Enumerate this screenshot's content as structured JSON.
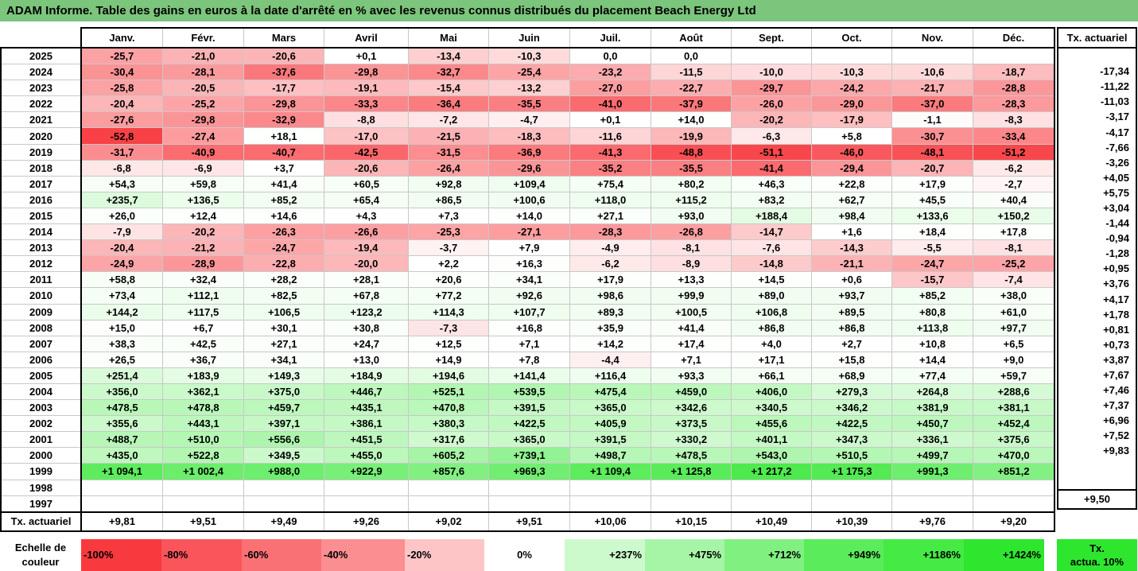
{
  "title": "ADAM Informe. Table des gains en euros à la date d'arrêté en % avec les revenus connus distribués du placement Beach Energy Ltd",
  "months": [
    "Janv.",
    "Févr.",
    "Mars",
    "Avril",
    "Mai",
    "Juin",
    "Juil.",
    "Août",
    "Sept.",
    "Oct.",
    "Nov.",
    "Déc."
  ],
  "rate_header": "Tx. actuariel",
  "footer_label": "Tx. actuariel",
  "footer_values": [
    "+9,81",
    "+9,51",
    "+9,49",
    "+9,26",
    "+9,02",
    "+9,51",
    "+10,06",
    "+10,15",
    "+10,49",
    "+10,39",
    "+9,76",
    "+9,20"
  ],
  "footer_rate": "+9,50",
  "rows": [
    {
      "year": "2025",
      "values": [
        "-25,7",
        "-21,0",
        "-20,6",
        "+0,1",
        "-13,4",
        "-10,3",
        "0,0",
        "0,0",
        "",
        "",
        "",
        ""
      ],
      "rate": ""
    },
    {
      "year": "2024",
      "values": [
        "-30,4",
        "-28,1",
        "-37,6",
        "-29,8",
        "-32,7",
        "-25,4",
        "-23,2",
        "-11,5",
        "-10,0",
        "-10,3",
        "-10,6",
        "-18,7"
      ],
      "rate": "-17,34"
    },
    {
      "year": "2023",
      "values": [
        "-25,8",
        "-20,5",
        "-17,7",
        "-19,1",
        "-15,4",
        "-13,2",
        "-27,0",
        "-22,7",
        "-29,7",
        "-24,2",
        "-21,7",
        "-28,8"
      ],
      "rate": "-11,22"
    },
    {
      "year": "2022",
      "values": [
        "-20,4",
        "-25,2",
        "-29,8",
        "-33,3",
        "-36,4",
        "-35,5",
        "-41,0",
        "-37,9",
        "-26,0",
        "-29,0",
        "-37,0",
        "-28,3"
      ],
      "rate": "-11,03"
    },
    {
      "year": "2021",
      "values": [
        "-27,6",
        "-29,8",
        "-32,9",
        "-8,8",
        "-7,2",
        "-4,7",
        "+0,1",
        "+14,0",
        "-20,2",
        "-17,9",
        "-1,1",
        "-8,3"
      ],
      "rate": "-3,17"
    },
    {
      "year": "2020",
      "values": [
        "-52,8",
        "-27,4",
        "+18,1",
        "-17,0",
        "-21,5",
        "-18,3",
        "-11,6",
        "-19,9",
        "-6,3",
        "+5,8",
        "-30,7",
        "-33,4"
      ],
      "rate": "-4,17"
    },
    {
      "year": "2019",
      "values": [
        "-31,7",
        "-40,9",
        "-40,7",
        "-42,5",
        "-31,5",
        "-36,9",
        "-41,3",
        "-48,8",
        "-51,1",
        "-46,0",
        "-48,1",
        "-51,2"
      ],
      "rate": "-7,66"
    },
    {
      "year": "2018",
      "values": [
        "-6,8",
        "-6,9",
        "+3,7",
        "-20,6",
        "-26,4",
        "-29,6",
        "-35,2",
        "-35,5",
        "-41,4",
        "-29,4",
        "-20,7",
        "-6,2"
      ],
      "rate": "-3,26"
    },
    {
      "year": "2017",
      "values": [
        "+54,3",
        "+59,8",
        "+41,4",
        "+60,5",
        "+92,8",
        "+109,4",
        "+75,4",
        "+80,2",
        "+46,3",
        "+22,8",
        "+17,9",
        "-2,7"
      ],
      "rate": "+4,05"
    },
    {
      "year": "2016",
      "values": [
        "+235,7",
        "+136,5",
        "+85,2",
        "+65,4",
        "+86,5",
        "+100,6",
        "+118,0",
        "+115,2",
        "+83,2",
        "+62,7",
        "+45,5",
        "+40,4"
      ],
      "rate": "+5,75"
    },
    {
      "year": "2015",
      "values": [
        "+26,0",
        "+12,4",
        "+14,6",
        "+4,3",
        "+7,3",
        "+14,0",
        "+27,1",
        "+93,0",
        "+188,4",
        "+98,4",
        "+133,6",
        "+150,2"
      ],
      "rate": "+3,04"
    },
    {
      "year": "2014",
      "values": [
        "-7,9",
        "-20,2",
        "-26,3",
        "-26,6",
        "-25,3",
        "-27,1",
        "-28,3",
        "-26,8",
        "-14,7",
        "+1,6",
        "+18,4",
        "+17,8"
      ],
      "rate": "-1,44"
    },
    {
      "year": "2013",
      "values": [
        "-20,4",
        "-21,2",
        "-24,7",
        "-19,4",
        "-3,7",
        "+7,9",
        "-4,9",
        "-8,1",
        "-7,6",
        "-14,3",
        "-5,5",
        "-8,1"
      ],
      "rate": "-0,94"
    },
    {
      "year": "2012",
      "values": [
        "-24,9",
        "-28,9",
        "-22,8",
        "-20,0",
        "+2,2",
        "+16,3",
        "-6,2",
        "-8,9",
        "-14,8",
        "-21,1",
        "-24,7",
        "-25,2"
      ],
      "rate": "-1,28"
    },
    {
      "year": "2011",
      "values": [
        "+58,8",
        "+32,4",
        "+28,2",
        "+28,1",
        "+20,6",
        "+34,1",
        "+17,9",
        "+13,3",
        "+14,5",
        "+0,6",
        "-15,7",
        "-7,4"
      ],
      "rate": "+0,95"
    },
    {
      "year": "2010",
      "values": [
        "+73,4",
        "+112,1",
        "+82,5",
        "+67,8",
        "+77,2",
        "+92,6",
        "+98,6",
        "+99,9",
        "+89,0",
        "+93,7",
        "+85,2",
        "+38,0"
      ],
      "rate": "+3,76"
    },
    {
      "year": "2009",
      "values": [
        "+144,2",
        "+117,5",
        "+106,5",
        "+123,2",
        "+114,3",
        "+107,7",
        "+89,3",
        "+100,5",
        "+106,8",
        "+89,5",
        "+80,8",
        "+61,0"
      ],
      "rate": "+4,17"
    },
    {
      "year": "2008",
      "values": [
        "+15,0",
        "+6,7",
        "+30,1",
        "+30,8",
        "-7,3",
        "+16,8",
        "+35,9",
        "+41,4",
        "+86,8",
        "+86,8",
        "+113,8",
        "+97,7"
      ],
      "rate": "+1,78"
    },
    {
      "year": "2007",
      "values": [
        "+38,3",
        "+42,5",
        "+27,1",
        "+24,7",
        "+12,5",
        "+7,1",
        "+14,2",
        "+17,4",
        "+4,0",
        "+2,7",
        "+10,8",
        "+6,5"
      ],
      "rate": "+0,81"
    },
    {
      "year": "2006",
      "values": [
        "+26,5",
        "+36,7",
        "+34,1",
        "+13,0",
        "+14,9",
        "+7,8",
        "-4,4",
        "+7,1",
        "+17,1",
        "+15,8",
        "+14,4",
        "+9,0"
      ],
      "rate": "+0,73"
    },
    {
      "year": "2005",
      "values": [
        "+251,4",
        "+183,9",
        "+149,3",
        "+184,9",
        "+194,6",
        "+141,4",
        "+116,4",
        "+93,3",
        "+66,1",
        "+68,9",
        "+77,4",
        "+59,7"
      ],
      "rate": "+3,87"
    },
    {
      "year": "2004",
      "values": [
        "+356,0",
        "+362,1",
        "+375,0",
        "+446,7",
        "+525,1",
        "+539,5",
        "+475,4",
        "+459,0",
        "+406,0",
        "+279,3",
        "+264,8",
        "+288,6"
      ],
      "rate": "+7,67"
    },
    {
      "year": "2003",
      "values": [
        "+478,5",
        "+478,8",
        "+459,7",
        "+435,1",
        "+470,8",
        "+391,5",
        "+365,0",
        "+342,6",
        "+340,5",
        "+346,2",
        "+381,9",
        "+381,1"
      ],
      "rate": "+7,46"
    },
    {
      "year": "2002",
      "values": [
        "+355,6",
        "+443,1",
        "+397,1",
        "+386,1",
        "+380,3",
        "+422,5",
        "+405,9",
        "+373,5",
        "+455,6",
        "+422,5",
        "+450,7",
        "+452,4"
      ],
      "rate": "+7,37"
    },
    {
      "year": "2001",
      "values": [
        "+488,7",
        "+510,0",
        "+556,6",
        "+451,5",
        "+317,6",
        "+365,0",
        "+391,5",
        "+330,2",
        "+401,1",
        "+347,3",
        "+336,1",
        "+375,6"
      ],
      "rate": "+6,96"
    },
    {
      "year": "2000",
      "values": [
        "+435,0",
        "+522,8",
        "+349,5",
        "+455,0",
        "+605,2",
        "+739,1",
        "+498,7",
        "+478,5",
        "+543,0",
        "+510,5",
        "+499,7",
        "+470,0"
      ],
      "rate": "+7,52"
    },
    {
      "year": "1999",
      "values": [
        "+1 094,1",
        "+1 002,4",
        "+988,0",
        "+922,9",
        "+857,6",
        "+969,3",
        "+1 109,4",
        "+1 125,8",
        "+1 217,2",
        "+1 175,3",
        "+991,3",
        "+851,2"
      ],
      "rate": "+9,83"
    },
    {
      "year": "1998",
      "values": [
        "",
        "",
        "",
        "",
        "",
        "",
        "",
        "",
        "",
        "",
        "",
        ""
      ],
      "rate": ""
    },
    {
      "year": "1997",
      "values": [
        "",
        "",
        "",
        "",
        "",
        "",
        "",
        "",
        "",
        "",
        "",
        ""
      ],
      "rate": ""
    }
  ],
  "scale": {
    "label_line1": "Echelle de",
    "label_line2": "couleur",
    "steps": [
      {
        "label": "-100%",
        "color": "#f8393e",
        "align": "left"
      },
      {
        "label": "-80%",
        "color": "#f9555a",
        "align": "left"
      },
      {
        "label": "-60%",
        "color": "#fa7175",
        "align": "left"
      },
      {
        "label": "-40%",
        "color": "#fb8e90",
        "align": "left"
      },
      {
        "label": "-20%",
        "color": "#fdc5c6",
        "align": "left"
      },
      {
        "label": "0%",
        "color": "#ffffff",
        "align": "center"
      },
      {
        "label": "+237%",
        "color": "#ccfacc",
        "align": "right"
      },
      {
        "label": "+475%",
        "color": "#a6f5a6",
        "align": "right"
      },
      {
        "label": "+712%",
        "color": "#80f080",
        "align": "right"
      },
      {
        "label": "+949%",
        "color": "#5aec5a",
        "align": "right"
      },
      {
        "label": "+1186%",
        "color": "#45ea45",
        "align": "right"
      },
      {
        "label": "+1424%",
        "color": "#2ee62e",
        "align": "right"
      }
    ],
    "right_line1": "Tx.",
    "right_line2": "actua. 10%",
    "right_color": "#2ee62e"
  },
  "colors": {
    "title_bg": "#7cc57c",
    "neg_full": "#f8393e",
    "pos_full": "#2ee62e"
  }
}
